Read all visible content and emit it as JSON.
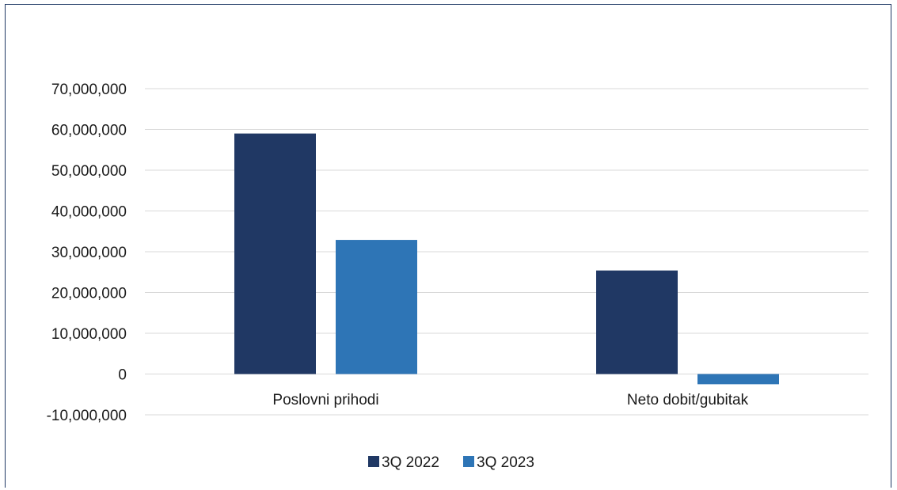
{
  "chart_data": {
    "type": "bar",
    "categories": [
      "Poslovni prihodi",
      "Neto dobit/gubitak"
    ],
    "series": [
      {
        "name": "3Q 2022",
        "color": "#203864",
        "values": [
          59000000,
          25400000
        ]
      },
      {
        "name": "3Q 2023",
        "color": "#2e75b6",
        "values": [
          32900000,
          -2500000
        ]
      }
    ],
    "ylim": [
      -10000000,
      70000000
    ],
    "yticks": [
      -10000000,
      0,
      10000000,
      20000000,
      30000000,
      40000000,
      50000000,
      60000000,
      70000000
    ],
    "ytick_labels": [
      "-10,000,000",
      "0",
      "10,000,000",
      "20,000,000",
      "30,000,000",
      "40,000,000",
      "50,000,000",
      "60,000,000",
      "70,000,000"
    ],
    "grid": true,
    "gridline_color": "#d9d9d9",
    "legend_position": "bottom",
    "title": "",
    "xlabel": "",
    "ylabel": ""
  }
}
